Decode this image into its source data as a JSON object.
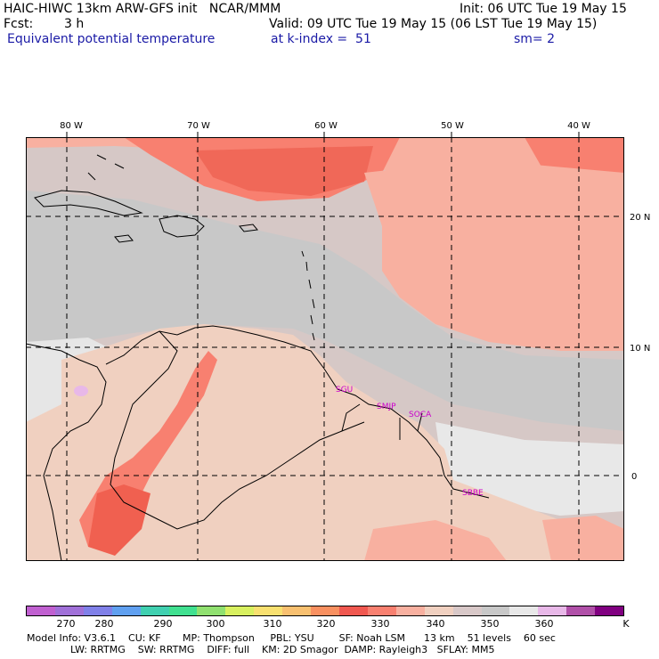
{
  "header": {
    "title": "HAIC-HIWC 13km ARW-GFS init   NCAR/MMM",
    "init": "Init: 06 UTC Tue 19 May 15",
    "fcst_label": "Fcst:",
    "fcst_value": "3 h",
    "valid": "Valid: 09 UTC Tue 19 May 15 (06 LST Tue 19 May 15)",
    "field": "Equivalent potential temperature",
    "level": "at k-index =  51",
    "smooth": "sm= 2"
  },
  "map": {
    "lon_labels": [
      "80 W",
      "70 W",
      "60 W",
      "50 W",
      "40 W"
    ],
    "lat_labels": [
      "20 N",
      "10 N",
      "0"
    ],
    "stations": [
      "SGU",
      "SMJP",
      "SOCA",
      "SBBE"
    ]
  },
  "colorbar": {
    "unit": "K",
    "ticks": [
      "270",
      "280",
      "290",
      "300",
      "310",
      "320",
      "330",
      "340",
      "350",
      "360"
    ],
    "colors": [
      "#c060d0",
      "#a070d8",
      "#8080e8",
      "#60a0f0",
      "#40d0b0",
      "#40e090",
      "#90e070",
      "#d8f060",
      "#f8e070",
      "#f8c070",
      "#f89060",
      "#f05850",
      "#f88070",
      "#f8b0a0",
      "#f0d0c0",
      "#d8c8c8",
      "#c8c8c8",
      "#e8e8e8",
      "#e8b8e8",
      "#b050a8",
      "#800080"
    ]
  },
  "footer": {
    "line1": "Model Info: V3.6.1    CU: KF       MP: Thompson     PBL: YSU        SF: Noah LSM      13 km    51 levels    60 sec",
    "line2": "              LW: RRTMG    SW: RRTMG    DIFF: full    KM: 2D Smagor  DAMP: Rayleigh3   SFLAY: MM5"
  }
}
